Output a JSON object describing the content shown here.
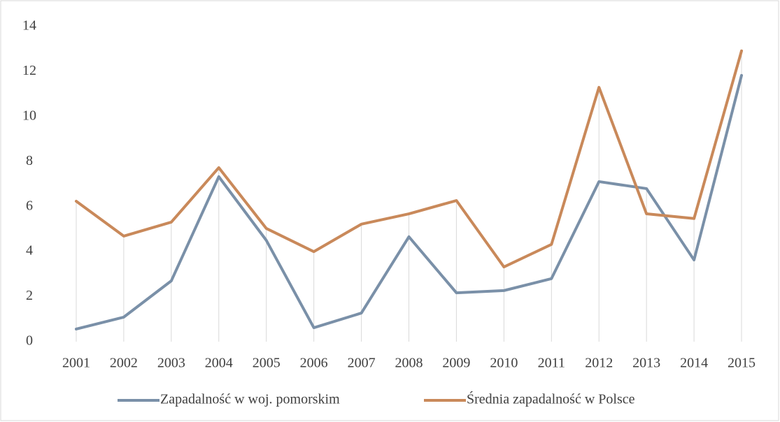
{
  "chart_data": {
    "type": "line",
    "categories": [
      "2001",
      "2002",
      "2003",
      "2004",
      "2005",
      "2006",
      "2007",
      "2008",
      "2009",
      "2010",
      "2011",
      "2012",
      "2013",
      "2014",
      "2015"
    ],
    "series": [
      {
        "name": "Zapadalność w woj. pomorskim",
        "color": "#7a90a8",
        "values": [
          0.56,
          1.09,
          2.7,
          7.33,
          4.5,
          0.62,
          1.27,
          4.66,
          2.17,
          2.27,
          2.8,
          7.11,
          6.8,
          3.63,
          11.83
        ]
      },
      {
        "name": "Średnia zapadalność w Polsce",
        "color": "#c9895a",
        "values": [
          6.24,
          4.69,
          5.31,
          7.73,
          5.03,
          4.0,
          5.22,
          5.68,
          6.27,
          3.32,
          4.32,
          11.3,
          5.68,
          5.47,
          12.92
        ]
      }
    ],
    "ylim": [
      0,
      14
    ],
    "yticks": [
      0,
      2,
      4,
      6,
      8,
      10,
      12,
      14
    ],
    "drop_lines": true,
    "grid": false,
    "legend": "bottom"
  }
}
